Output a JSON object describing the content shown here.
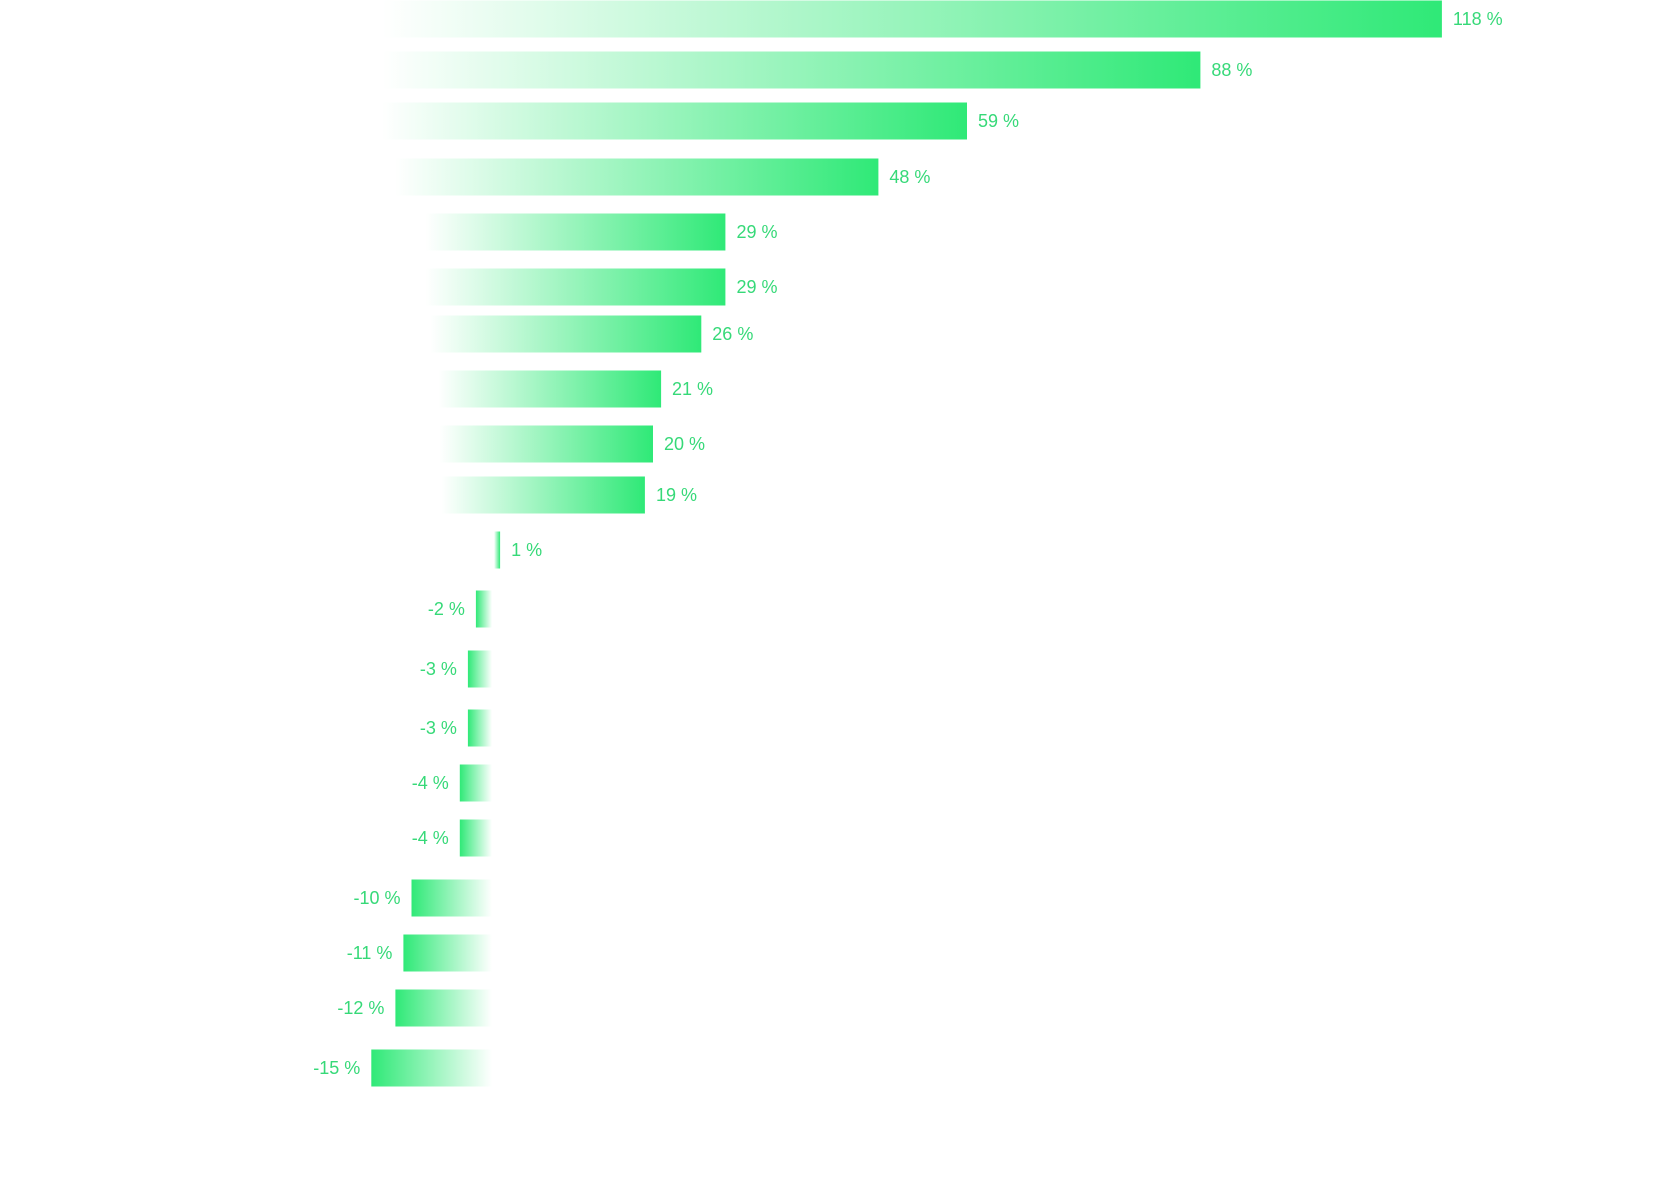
{
  "colors": {
    "bar": "#2fe977",
    "label": "#36d978",
    "background": "#ffffff"
  },
  "chart_data": {
    "type": "bar",
    "orientation": "horizontal",
    "unit": "%",
    "grid": false,
    "legend": "none",
    "title": "",
    "xlabel": "",
    "ylabel": "",
    "xlim": [
      -15,
      118
    ],
    "values": [
      118,
      88,
      59,
      48,
      29,
      29,
      26,
      21,
      20,
      19,
      1,
      -2,
      -3,
      -3,
      -4,
      -4,
      -10,
      -11,
      -12,
      -15
    ],
    "labels": [
      "118 %",
      "88 %",
      "59 %",
      "48 %",
      "29 %",
      "29 %",
      "26 %",
      "21 %",
      "20 %",
      "19 %",
      "1 %",
      "-2 %",
      "-3 %",
      "-3 %",
      "-4 %",
      "-4 %",
      "-10 %",
      "-11 %",
      "-12 %",
      "-15 %"
    ]
  }
}
